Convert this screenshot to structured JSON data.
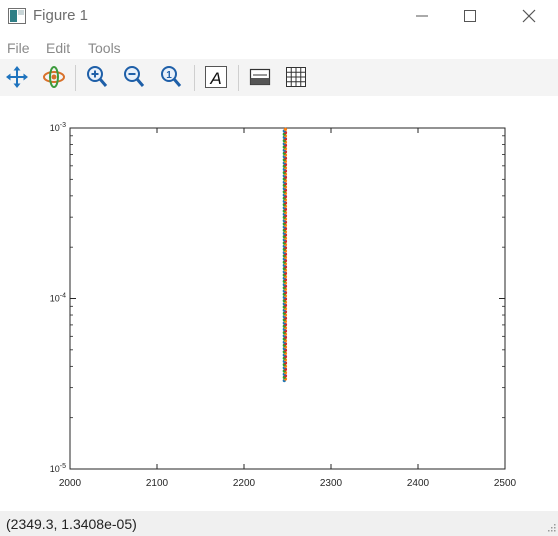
{
  "window": {
    "title": "Figure 1",
    "icon": "figure-window-icon",
    "controls": [
      "minimize-icon",
      "maximize-icon",
      "close-icon"
    ]
  },
  "menu": {
    "items": [
      {
        "label": "File"
      },
      {
        "label": "Edit"
      },
      {
        "label": "Tools"
      }
    ]
  },
  "toolbar": {
    "tools": [
      {
        "name": "pan-icon"
      },
      {
        "name": "rotate-3d-icon"
      },
      {
        "name": "zoom-in-icon"
      },
      {
        "name": "zoom-out-icon"
      },
      {
        "name": "zoom-reset-icon"
      },
      {
        "name": "text-annotation-icon"
      },
      {
        "name": "edit-axes-icon"
      },
      {
        "name": "grid-toggle-icon"
      }
    ]
  },
  "status": {
    "coordinates": "(2349.3, 1.3408e-05)"
  },
  "chart_data": {
    "type": "scatter",
    "title": "",
    "xlabel": "",
    "ylabel": "",
    "xlim": [
      2000,
      2500
    ],
    "ylim": [
      1e-05,
      0.001
    ],
    "yscale": "log",
    "grid": false,
    "x_ticks": [
      2000,
      2100,
      2200,
      2300,
      2400,
      2500
    ],
    "x_tick_labels": [
      "2000",
      "2100",
      "2200",
      "2300",
      "2400",
      "2500"
    ],
    "y_ticks": [
      1e-05,
      0.0001,
      0.001
    ],
    "y_tick_labels": [
      {
        "base": "10",
        "exp": "-5"
      },
      {
        "base": "10",
        "exp": "-4"
      },
      {
        "base": "10",
        "exp": "-3"
      }
    ],
    "series_colors": [
      "#1f77b4",
      "#ff7f0e",
      "#2ca02c",
      "#d62728"
    ],
    "series": [
      {
        "x": 2247,
        "y_range": [
          3.3e-05,
          0.001
        ],
        "marker": "dot"
      }
    ]
  }
}
